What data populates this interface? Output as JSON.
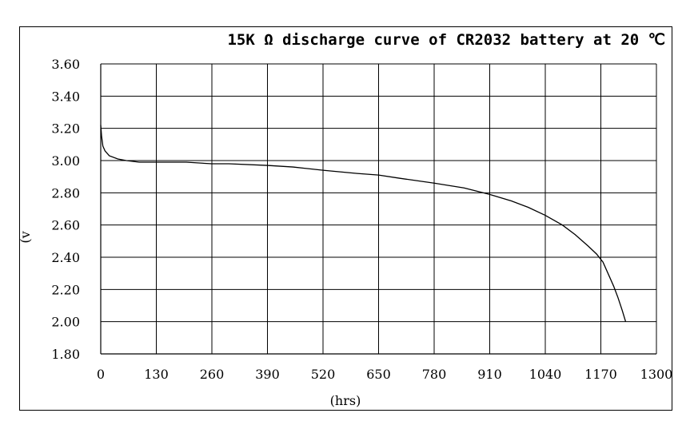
{
  "chart_data": {
    "type": "line",
    "title": "15K Ω discharge curve of CR2032 battery at 20 ℃",
    "xlabel": "(hrs)",
    "ylabel": "(v",
    "xlim": [
      0,
      1300
    ],
    "ylim": [
      1.8,
      3.6
    ],
    "x_ticks": [
      "0",
      "130",
      "260",
      "390",
      "520",
      "650",
      "780",
      "910",
      "1040",
      "1170",
      "1300"
    ],
    "y_ticks": [
      "3.60",
      "3.40",
      "3.20",
      "3.00",
      "2.80",
      "2.60",
      "2.40",
      "2.20",
      "2.00",
      "1.80"
    ],
    "grid": true,
    "series": [
      {
        "color": "#000000",
        "x": [
          0,
          2,
          5,
          10,
          20,
          40,
          60,
          90,
          130,
          200,
          260,
          300,
          390,
          450,
          520,
          600,
          650,
          700,
          780,
          850,
          910,
          960,
          1000,
          1040,
          1080,
          1110,
          1140,
          1160,
          1175,
          1190,
          1200,
          1210,
          1220,
          1228
        ],
        "y": [
          3.22,
          3.15,
          3.09,
          3.06,
          3.03,
          3.01,
          3.0,
          2.99,
          2.99,
          2.99,
          2.98,
          2.98,
          2.97,
          2.96,
          2.94,
          2.92,
          2.91,
          2.89,
          2.86,
          2.83,
          2.79,
          2.75,
          2.71,
          2.66,
          2.6,
          2.54,
          2.47,
          2.42,
          2.37,
          2.28,
          2.22,
          2.15,
          2.07,
          2.0
        ]
      }
    ]
  }
}
